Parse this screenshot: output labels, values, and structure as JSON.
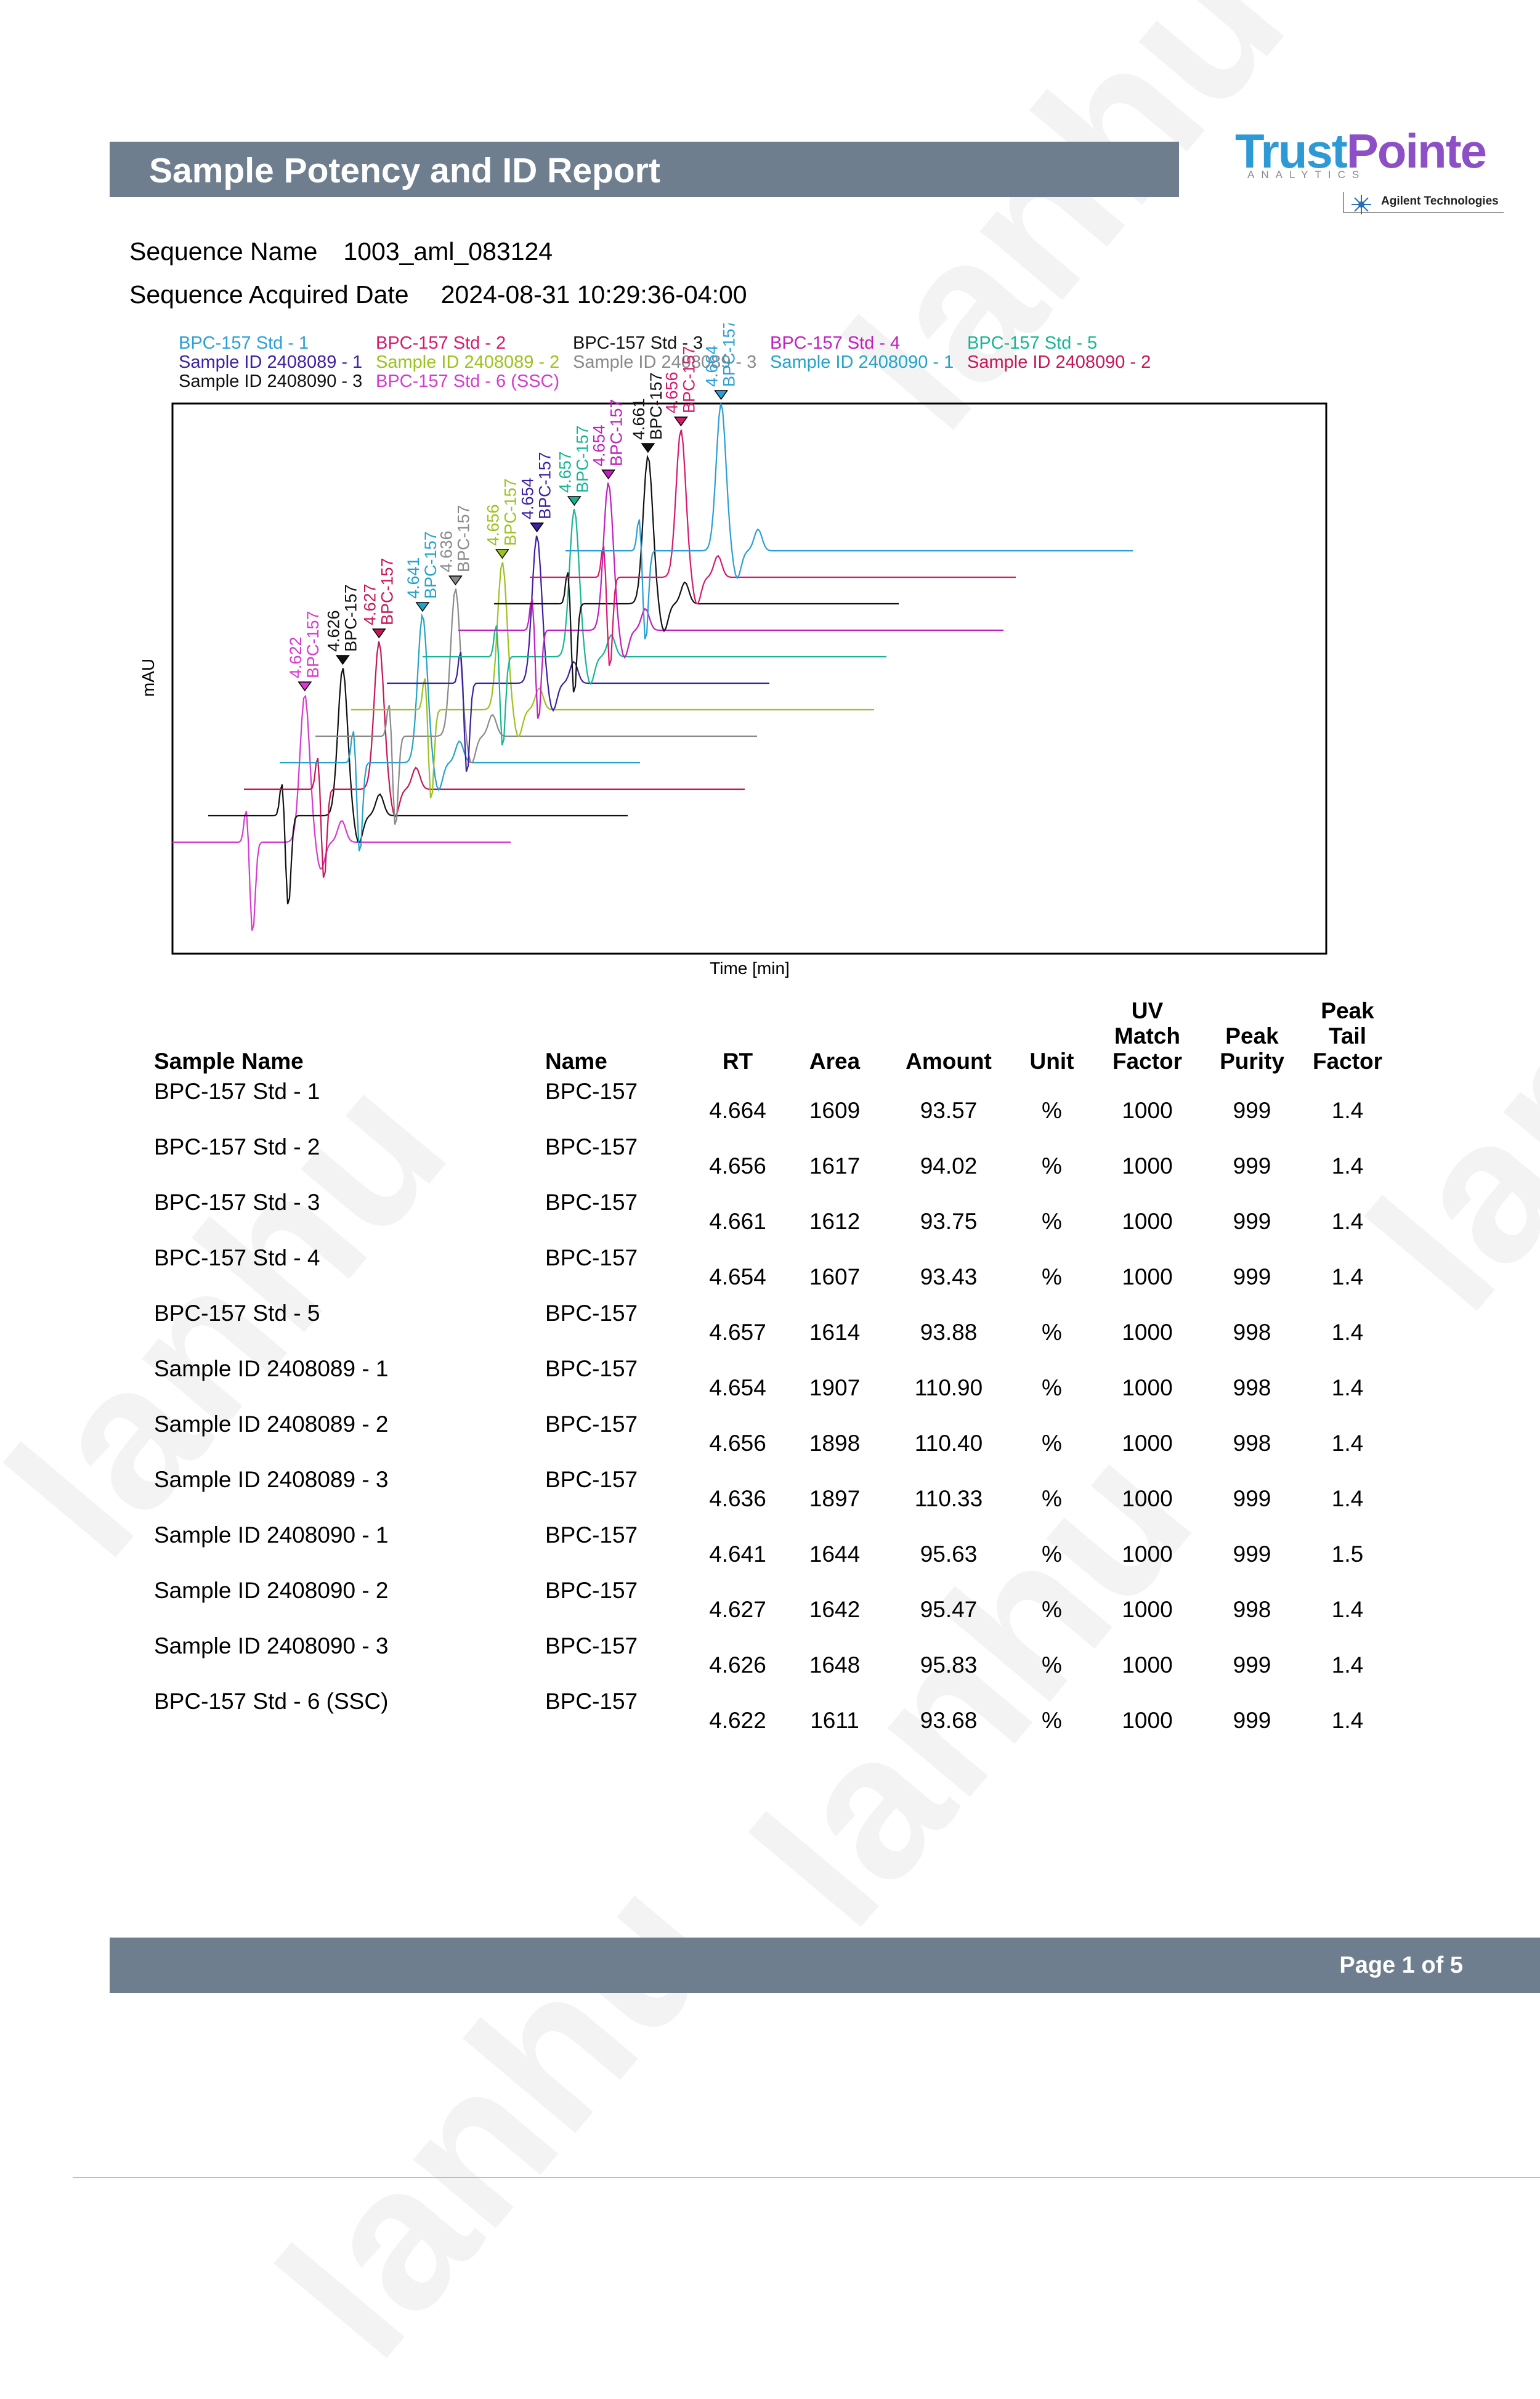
{
  "report": {
    "title": "Sample Potency and ID Report",
    "sequence_name_label": "Sequence Name",
    "sequence_name": "1003_aml_083124",
    "acquired_label": "Sequence Acquired Date",
    "acquired_date": "2024-08-31 10:29:36-04:00",
    "page": "Page 1 of 5"
  },
  "logo": {
    "brand_a": "Trust",
    "brand_b": "Pointe",
    "tagline": "ANALYTICS",
    "partner": "Agilent Technologies"
  },
  "watermark": "lanhu",
  "colors": {
    "header_bar": "#6e7e8f",
    "std1": "#2a9fd6",
    "std2": "#d6196c",
    "std3": "#111111",
    "std4": "#c21fbf",
    "std5": "#18b592",
    "s2408089_1": "#3d1fa3",
    "s2408089_2": "#9cc21f",
    "s2408089_3": "#8a8a8a",
    "s2408090_1": "#23a3c9",
    "s2408090_2": "#c71658",
    "s2408090_3": "#111111",
    "std6": "#d63ad0"
  },
  "chart_data": {
    "type": "line",
    "title": "",
    "xlabel": "Time [min]",
    "ylabel": "mAU",
    "grid": false,
    "legend_position": "top",
    "series": [
      {
        "name": "BPC-157 Std - 1",
        "peak_label": "BPC-157",
        "rt_label": "4.664",
        "rt": 4.664,
        "color": "#2a9fd6"
      },
      {
        "name": "BPC-157 Std - 2",
        "peak_label": "BPC-157",
        "rt_label": "4.656",
        "rt": 4.656,
        "color": "#d6196c"
      },
      {
        "name": "BPC-157 Std - 3",
        "peak_label": "BPC-157",
        "rt_label": "4.661",
        "rt": 4.661,
        "color": "#111111"
      },
      {
        "name": "BPC-157 Std - 4",
        "peak_label": "BPC-157",
        "rt_label": "4.654",
        "rt": 4.654,
        "color": "#c21fbf"
      },
      {
        "name": "BPC-157 Std - 5",
        "peak_label": "BPC-157",
        "rt_label": "4.657",
        "rt": 4.657,
        "color": "#18b592"
      },
      {
        "name": "Sample ID 2408089 - 1",
        "peak_label": "BPC-157",
        "rt_label": "4.654",
        "rt": 4.654,
        "color": "#3d1fa3"
      },
      {
        "name": "Sample ID 2408089 - 2",
        "peak_label": "BPC-157",
        "rt_label": "4.656",
        "rt": 4.656,
        "color": "#9cc21f"
      },
      {
        "name": "Sample ID 2408089 - 3",
        "peak_label": "BPC-157",
        "rt_label": "4.636",
        "rt": 4.636,
        "color": "#8a8a8a"
      },
      {
        "name": "Sample ID 2408090 - 1",
        "peak_label": "BPC-157",
        "rt_label": "4.641",
        "rt": 4.641,
        "color": "#23a3c9"
      },
      {
        "name": "Sample ID 2408090 - 2",
        "peak_label": "BPC-157",
        "rt_label": "4.627",
        "rt": 4.627,
        "color": "#c71658"
      },
      {
        "name": "Sample ID 2408090 - 3",
        "peak_label": "BPC-157",
        "rt_label": "4.626",
        "rt": 4.626,
        "color": "#111111"
      },
      {
        "name": "BPC-157 Std - 6 (SSC)",
        "peak_label": "BPC-157",
        "rt_label": "4.622",
        "rt": 4.622,
        "color": "#d63ad0"
      }
    ]
  },
  "table": {
    "headers": [
      [
        "Sample Name"
      ],
      [
        "Name"
      ],
      [
        "RT"
      ],
      [
        "Area"
      ],
      [
        "Amount"
      ],
      [
        "Unit"
      ],
      [
        "UV",
        "Match",
        "Factor"
      ],
      [
        "Peak",
        "Purity"
      ],
      [
        "Peak",
        "Tail",
        "Factor"
      ]
    ],
    "rows": [
      [
        "BPC-157 Std - 1",
        "BPC-157",
        "4.664",
        "1609",
        "93.57",
        "%",
        "1000",
        "999",
        "1.4"
      ],
      [
        "BPC-157 Std - 2",
        "BPC-157",
        "4.656",
        "1617",
        "94.02",
        "%",
        "1000",
        "999",
        "1.4"
      ],
      [
        "BPC-157 Std - 3",
        "BPC-157",
        "4.661",
        "1612",
        "93.75",
        "%",
        "1000",
        "999",
        "1.4"
      ],
      [
        "BPC-157 Std - 4",
        "BPC-157",
        "4.654",
        "1607",
        "93.43",
        "%",
        "1000",
        "999",
        "1.4"
      ],
      [
        "BPC-157 Std - 5",
        "BPC-157",
        "4.657",
        "1614",
        "93.88",
        "%",
        "1000",
        "998",
        "1.4"
      ],
      [
        "Sample ID 2408089 - 1",
        "BPC-157",
        "4.654",
        "1907",
        "110.90",
        "%",
        "1000",
        "998",
        "1.4"
      ],
      [
        "Sample ID 2408089 - 2",
        "BPC-157",
        "4.656",
        "1898",
        "110.40",
        "%",
        "1000",
        "998",
        "1.4"
      ],
      [
        "Sample ID 2408089 - 3",
        "BPC-157",
        "4.636",
        "1897",
        "110.33",
        "%",
        "1000",
        "999",
        "1.4"
      ],
      [
        "Sample ID 2408090 - 1",
        "BPC-157",
        "4.641",
        "1644",
        "95.63",
        "%",
        "1000",
        "999",
        "1.5"
      ],
      [
        "Sample ID 2408090 - 2",
        "BPC-157",
        "4.627",
        "1642",
        "95.47",
        "%",
        "1000",
        "998",
        "1.4"
      ],
      [
        "Sample ID 2408090 - 3",
        "BPC-157",
        "4.626",
        "1648",
        "95.83",
        "%",
        "1000",
        "999",
        "1.4"
      ],
      [
        "BPC-157 Std - 6 (SSC)",
        "BPC-157",
        "4.622",
        "1611",
        "93.68",
        "%",
        "1000",
        "999",
        "1.4"
      ]
    ]
  }
}
